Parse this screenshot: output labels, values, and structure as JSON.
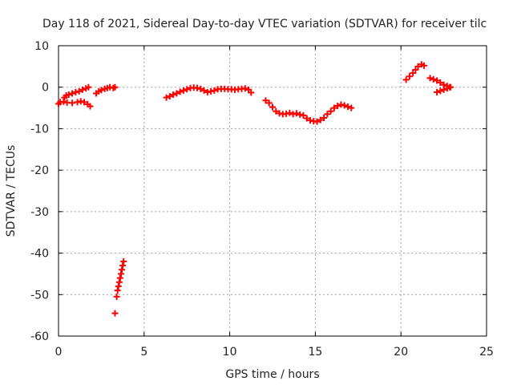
{
  "chart_data": {
    "type": "scatter",
    "title": "Day 118 of 2021, Sidereal Day-to-day VTEC variation (SDTVAR) for receiver tilc",
    "xlabel": "GPS time / hours",
    "ylabel": "SDTVAR / TECUs",
    "xlim": [
      0,
      25
    ],
    "ylim": [
      -60,
      10
    ],
    "xticks": [
      "0",
      "5",
      "10",
      "15",
      "20",
      "25"
    ],
    "yticks": [
      "10",
      "0",
      "-10",
      "-20",
      "-30",
      "-40",
      "-50",
      "-60"
    ],
    "grid": true,
    "marker": "plus",
    "color": "#ff0000",
    "series": [
      {
        "points": [
          [
            0.0,
            -4.0
          ],
          [
            0.1,
            -3.6
          ],
          [
            0.3,
            -3.5
          ],
          [
            0.5,
            -3.7
          ],
          [
            0.8,
            -3.8
          ],
          [
            1.1,
            -3.6
          ],
          [
            1.3,
            -3.4
          ],
          [
            1.5,
            -3.6
          ],
          [
            1.7,
            -4.1
          ],
          [
            1.85,
            -4.6
          ],
          [
            0.35,
            -2.5
          ],
          [
            0.45,
            -2.0
          ],
          [
            0.6,
            -1.8
          ],
          [
            0.8,
            -1.5
          ],
          [
            1.0,
            -1.2
          ],
          [
            1.2,
            -1.0
          ],
          [
            1.4,
            -0.6
          ],
          [
            1.6,
            -0.3
          ],
          [
            1.75,
            0.0
          ],
          [
            2.2,
            -1.5
          ],
          [
            2.35,
            -1.0
          ],
          [
            2.5,
            -0.7
          ],
          [
            2.7,
            -0.4
          ],
          [
            2.85,
            -0.2
          ],
          [
            3.0,
            0.0
          ],
          [
            3.2,
            -0.2
          ],
          [
            3.3,
            0.0
          ],
          [
            3.3,
            -54.5
          ],
          [
            3.4,
            -50.5
          ],
          [
            3.45,
            -49.0
          ],
          [
            3.5,
            -48.0
          ],
          [
            3.55,
            -47.0
          ],
          [
            3.6,
            -46.0
          ],
          [
            3.65,
            -45.0
          ],
          [
            3.7,
            -44.0
          ],
          [
            3.75,
            -43.0
          ],
          [
            3.8,
            -42.0
          ],
          [
            6.3,
            -2.5
          ],
          [
            6.5,
            -2.2
          ],
          [
            6.7,
            -1.8
          ],
          [
            6.9,
            -1.5
          ],
          [
            7.1,
            -1.1
          ],
          [
            7.3,
            -0.8
          ],
          [
            7.5,
            -0.5
          ],
          [
            7.7,
            -0.2
          ],
          [
            7.9,
            -0.1
          ],
          [
            8.1,
            -0.2
          ],
          [
            8.3,
            -0.4
          ],
          [
            8.5,
            -0.8
          ],
          [
            8.7,
            -1.2
          ],
          [
            8.9,
            -1.0
          ],
          [
            9.1,
            -0.8
          ],
          [
            9.3,
            -0.5
          ],
          [
            9.5,
            -0.4
          ],
          [
            9.7,
            -0.4
          ],
          [
            9.9,
            -0.5
          ],
          [
            10.1,
            -0.5
          ],
          [
            10.3,
            -0.6
          ],
          [
            10.5,
            -0.5
          ],
          [
            10.7,
            -0.4
          ],
          [
            10.9,
            -0.3
          ],
          [
            11.1,
            -0.6
          ],
          [
            11.25,
            -1.3
          ],
          [
            12.1,
            -3.2
          ],
          [
            12.3,
            -3.8
          ],
          [
            12.5,
            -4.8
          ],
          [
            12.7,
            -5.8
          ],
          [
            12.9,
            -6.3
          ],
          [
            13.1,
            -6.5
          ],
          [
            13.3,
            -6.4
          ],
          [
            13.5,
            -6.2
          ],
          [
            13.7,
            -6.5
          ],
          [
            13.9,
            -6.3
          ],
          [
            14.1,
            -6.6
          ],
          [
            14.3,
            -6.8
          ],
          [
            14.5,
            -7.5
          ],
          [
            14.7,
            -8.0
          ],
          [
            14.9,
            -8.2
          ],
          [
            15.1,
            -8.3
          ],
          [
            15.3,
            -7.9
          ],
          [
            15.5,
            -7.4
          ],
          [
            15.7,
            -6.5
          ],
          [
            15.9,
            -5.8
          ],
          [
            16.1,
            -5.0
          ],
          [
            16.3,
            -4.5
          ],
          [
            16.5,
            -4.2
          ],
          [
            16.7,
            -4.4
          ],
          [
            16.9,
            -4.7
          ],
          [
            17.1,
            -5.0
          ],
          [
            20.3,
            1.8
          ],
          [
            20.5,
            2.6
          ],
          [
            20.7,
            3.4
          ],
          [
            20.85,
            4.2
          ],
          [
            21.0,
            5.0
          ],
          [
            21.2,
            5.5
          ],
          [
            21.35,
            5.2
          ],
          [
            21.7,
            2.2
          ],
          [
            21.9,
            1.9
          ],
          [
            22.1,
            1.6
          ],
          [
            22.3,
            1.1
          ],
          [
            22.5,
            0.6
          ],
          [
            22.7,
            0.3
          ],
          [
            22.9,
            0.0
          ],
          [
            22.1,
            -1.2
          ],
          [
            22.3,
            -0.9
          ],
          [
            22.5,
            -0.6
          ],
          [
            22.7,
            -0.3
          ],
          [
            22.85,
            0.0
          ]
        ]
      }
    ]
  }
}
